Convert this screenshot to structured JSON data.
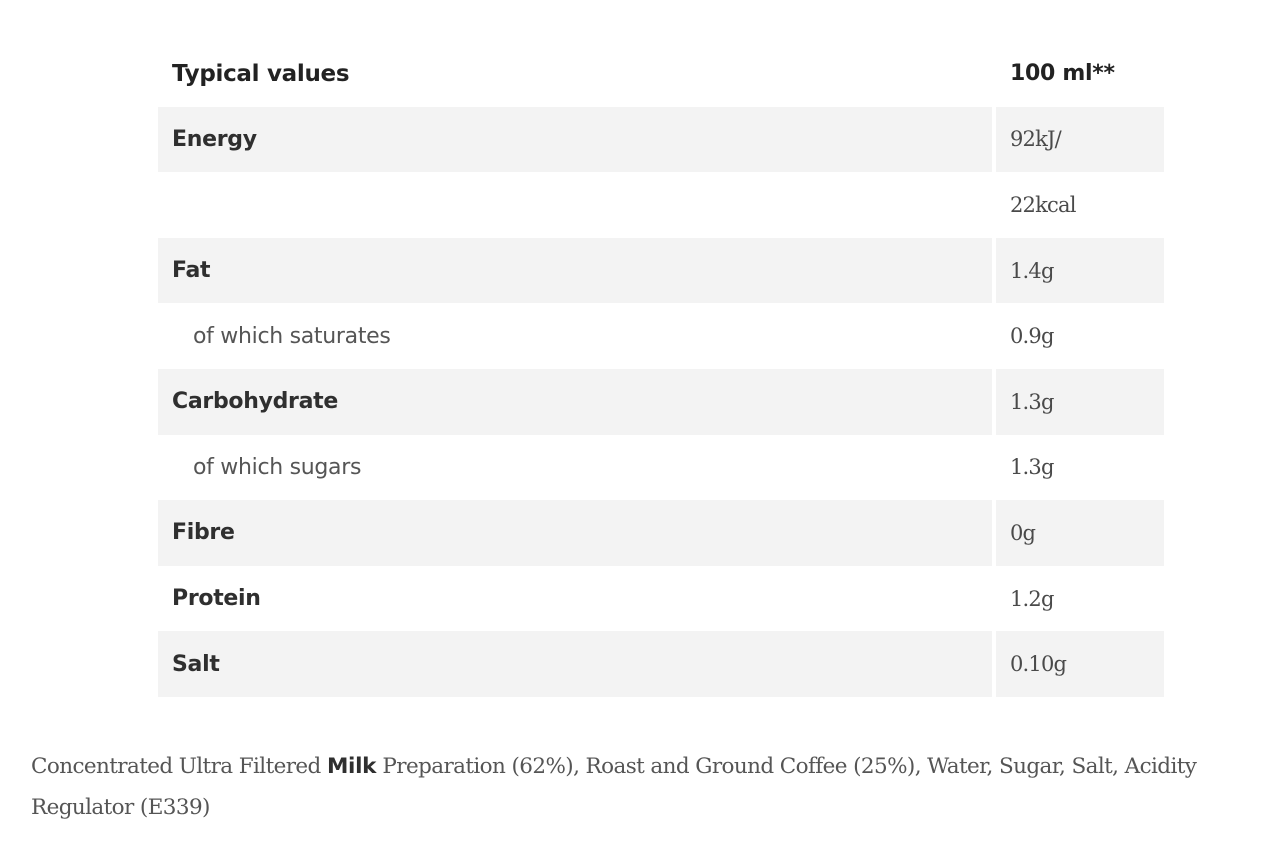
{
  "table": {
    "header": {
      "name": "Typical values",
      "value": "100 ml**"
    },
    "rows": [
      {
        "name": "Energy",
        "value": "92kJ/",
        "sub": false,
        "shaded": true
      },
      {
        "name": "",
        "value": "22kcal",
        "sub": false,
        "shaded": false
      },
      {
        "name": "Fat",
        "value": "1.4g",
        "sub": false,
        "shaded": true
      },
      {
        "name": "of which saturates",
        "value": "0.9g",
        "sub": true,
        "shaded": false
      },
      {
        "name": "Carbohydrate",
        "value": "1.3g",
        "sub": false,
        "shaded": true
      },
      {
        "name": "of which sugars",
        "value": "1.3g",
        "sub": true,
        "shaded": false
      },
      {
        "name": "Fibre",
        "value": "0g",
        "sub": false,
        "shaded": true
      },
      {
        "name": "Protein",
        "value": "1.2g",
        "sub": false,
        "shaded": false
      },
      {
        "name": "Salt",
        "value": "0.10g",
        "sub": false,
        "shaded": true
      }
    ]
  },
  "ingredients": {
    "before": "Concentrated Ultra Filtered ",
    "allergen": "Milk",
    "after": " Preparation (62%), Roast and Ground Coffee (25%), Water, Sugar, Salt, Acidity Regulator (E339)"
  },
  "colors": {
    "shaded_row": "#f3f3f3",
    "text": "#3b3b3b"
  }
}
